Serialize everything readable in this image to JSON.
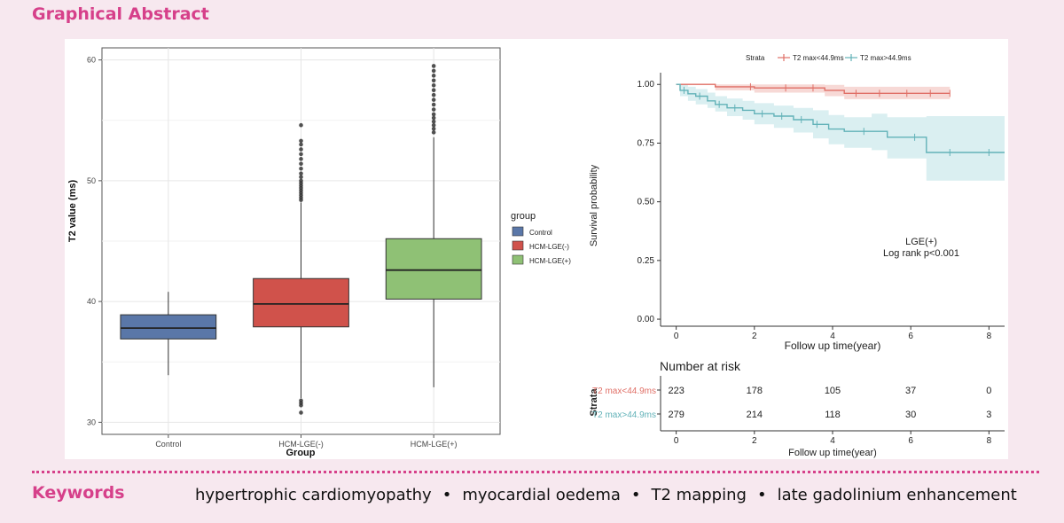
{
  "header": {
    "title": "Graphical Abstract"
  },
  "keywords": {
    "title": "Keywords",
    "items": [
      "hypertrophic cardiomyopathy",
      "myocardial oedema",
      "T2 mapping",
      "late gadolinium enhancement"
    ],
    "separator": "•"
  },
  "colors": {
    "accent": "#d6408a",
    "background": "#f7e8ef"
  },
  "chart_data": [
    {
      "type": "boxplot",
      "title": "",
      "xlabel": "Group",
      "ylabel": "T2 value (ms)",
      "ylim": [
        29,
        61
      ],
      "yticks": [
        30,
        40,
        50,
        60
      ],
      "categories": [
        "Control",
        "HCM-LGE(-)",
        "HCM-LGE(+)"
      ],
      "legend": {
        "title": "group",
        "entries": [
          "Control",
          "HCM-LGE(-)",
          "HCM-LGE(+)"
        ],
        "position": "right"
      },
      "series": [
        {
          "name": "Control",
          "color": "#5a77a8",
          "whisker_low": 33.9,
          "q1": 36.9,
          "median": 37.8,
          "q3": 38.9,
          "whisker_high": 40.8,
          "outliers": []
        },
        {
          "name": "HCM-LGE(-)",
          "color": "#d0524b",
          "whisker_low": 32.0,
          "q1": 37.9,
          "median": 39.8,
          "q3": 41.9,
          "whisker_high": 48.2,
          "outliers": [
            30.8,
            31.4,
            31.6,
            31.8,
            48.4,
            48.6,
            48.8,
            49.0,
            49.2,
            49.4,
            49.6,
            49.8,
            50.0,
            50.3,
            50.6,
            51.0,
            51.4,
            51.8,
            52.2,
            52.6,
            53.0,
            53.3,
            54.6
          ]
        },
        {
          "name": "HCM-LGE(+)",
          "color": "#8fc175",
          "whisker_low": 32.9,
          "q1": 40.2,
          "median": 42.6,
          "q3": 45.2,
          "whisker_high": 53.6,
          "outliers": [
            54.0,
            54.3,
            54.6,
            54.9,
            55.2,
            55.5,
            55.9,
            56.3,
            56.7,
            57.1,
            57.5,
            57.9,
            58.3,
            58.7,
            59.1,
            59.5
          ]
        }
      ]
    },
    {
      "type": "line",
      "subtype": "kaplan-meier",
      "xlabel": "Follow up time(year)",
      "ylabel": "Survival probability",
      "xlim": [
        -0.4,
        8.4
      ],
      "ylim": [
        -0.03,
        1.05
      ],
      "xticks": [
        0,
        2,
        4,
        6,
        8
      ],
      "yticks": [
        "0.00",
        "0.25",
        "0.50",
        "0.75",
        "1.00"
      ],
      "legend": {
        "title": "Strata",
        "entries": [
          "T2 max<44.9ms",
          "T2 max>44.9ms"
        ],
        "position": "top"
      },
      "annotation": [
        "LGE(+)",
        "Log rank p<0.001"
      ],
      "series": [
        {
          "name": "T2 max<44.9ms",
          "color": "#e06f66",
          "fill": "#f6d2cf",
          "x": [
            0,
            1.0,
            2.0,
            3.8,
            4.3,
            7.0
          ],
          "y": [
            1.0,
            0.99,
            0.985,
            0.975,
            0.962,
            0.962
          ],
          "lower": [
            1.0,
            0.975,
            0.965,
            0.95,
            0.937,
            0.937
          ],
          "upper": [
            1.0,
            1.0,
            1.0,
            0.998,
            0.99,
            0.99
          ],
          "censor_x": [
            1.9,
            2.8,
            3.5,
            4.6,
            5.2,
            5.9,
            6.5,
            7.0
          ]
        },
        {
          "name": "T2 max>44.9ms",
          "color": "#62b2b8",
          "fill": "#d3ecee",
          "x": [
            0,
            0.1,
            0.3,
            0.5,
            0.8,
            1.0,
            1.3,
            1.7,
            2.0,
            2.5,
            3.0,
            3.5,
            3.9,
            4.3,
            5.0,
            5.4,
            6.4,
            8.4
          ],
          "y": [
            1.0,
            0.975,
            0.96,
            0.95,
            0.93,
            0.915,
            0.9,
            0.89,
            0.875,
            0.865,
            0.85,
            0.83,
            0.81,
            0.8,
            0.8,
            0.775,
            0.71,
            0.71
          ],
          "lower": [
            1.0,
            0.95,
            0.93,
            0.915,
            0.9,
            0.885,
            0.865,
            0.85,
            0.83,
            0.815,
            0.795,
            0.77,
            0.745,
            0.73,
            0.72,
            0.685,
            0.59,
            0.59
          ],
          "upper": [
            1.0,
            1.0,
            0.99,
            0.98,
            0.965,
            0.95,
            0.94,
            0.93,
            0.92,
            0.91,
            0.9,
            0.89,
            0.87,
            0.86,
            0.875,
            0.86,
            0.865,
            0.865
          ],
          "censor_x": [
            0.2,
            0.6,
            1.1,
            1.5,
            2.2,
            2.7,
            3.2,
            3.6,
            4.8,
            6.1,
            7.0,
            8.0
          ]
        }
      ]
    },
    {
      "type": "table",
      "title": "Number at risk",
      "row_header": "Strata",
      "rows": [
        "T2 max<44.9ms",
        "T2 max>44.9ms"
      ],
      "row_colors": [
        "#e06f66",
        "#62b2b8"
      ],
      "columns": [
        0,
        2,
        4,
        6,
        8
      ],
      "values": [
        [
          "223",
          "178",
          "105",
          "37",
          "0"
        ],
        [
          "279",
          "214",
          "118",
          "30",
          "3"
        ]
      ],
      "xlabel": "Follow up time(year)"
    }
  ]
}
